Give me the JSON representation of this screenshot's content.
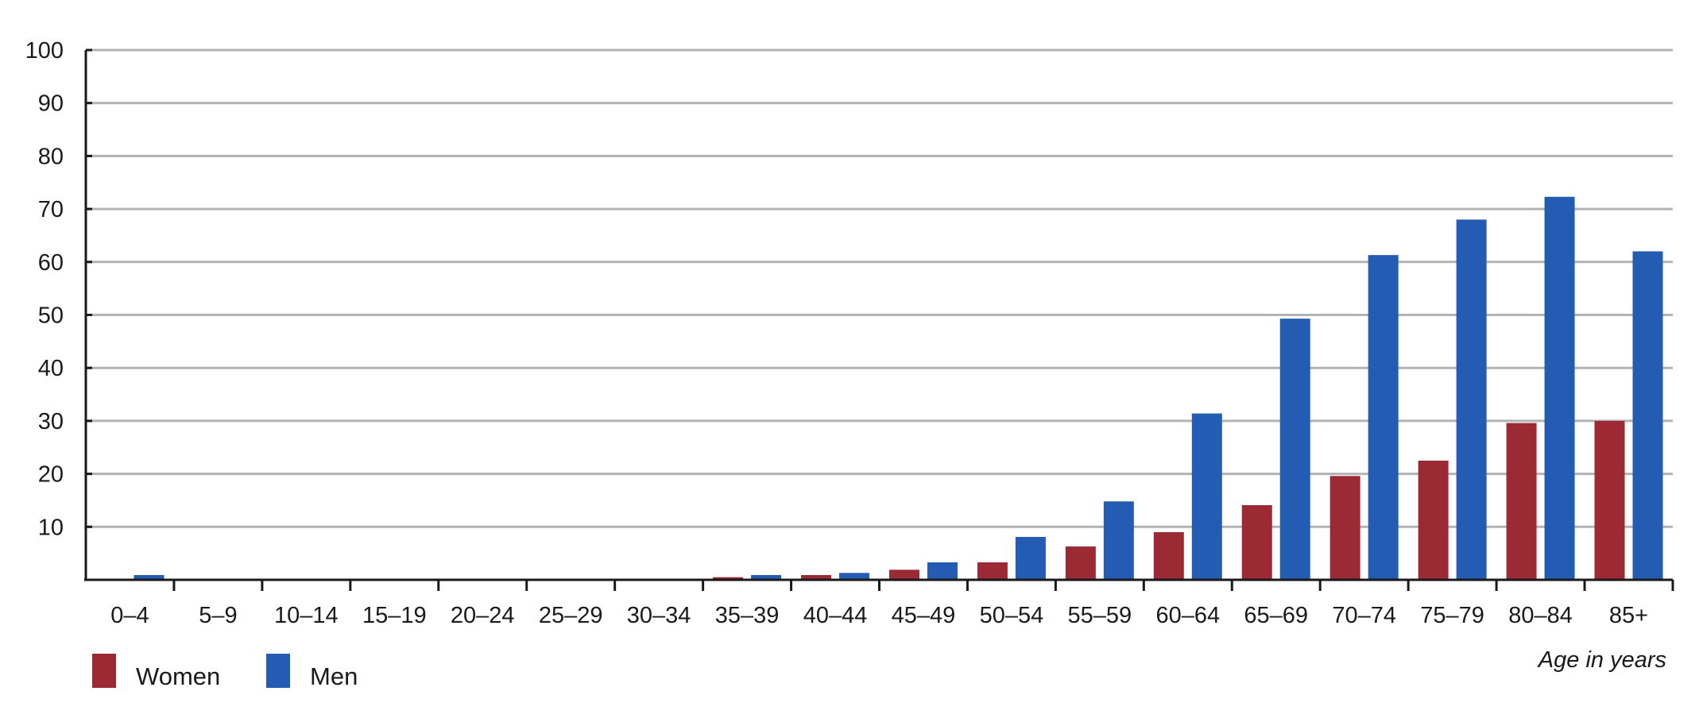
{
  "chart_data": {
    "type": "bar",
    "categories": [
      "0–4",
      "5–9",
      "10–14",
      "15–19",
      "20–24",
      "25–29",
      "30–34",
      "35–39",
      "40–44",
      "45–49",
      "50–54",
      "55–59",
      "60–64",
      "65–69",
      "70–74",
      "75–79",
      "80–84",
      "85+"
    ],
    "series": [
      {
        "name": "Women",
        "color": "#9b2a35",
        "values": [
          0.2,
          0.1,
          0.1,
          0.1,
          0.1,
          0.1,
          0.1,
          0.5,
          0.9,
          1.9,
          3.3,
          6.3,
          9.0,
          14.1,
          19.6,
          22.5,
          29.6,
          30.0
        ]
      },
      {
        "name": "Men",
        "color": "#245cb4",
        "values": [
          0.9,
          0.1,
          0.1,
          0.1,
          0.1,
          0.1,
          0.2,
          0.9,
          1.3,
          3.3,
          8.1,
          14.8,
          31.4,
          49.3,
          61.3,
          68.0,
          72.3,
          62.0
        ]
      }
    ],
    "xlabel": "Age in years",
    "ylabel": "",
    "ylim": [
      0,
      100
    ],
    "yticks": [
      10,
      20,
      30,
      40,
      50,
      60,
      70,
      80,
      90,
      100
    ],
    "grid": true,
    "legend_position": "bottom-left"
  }
}
